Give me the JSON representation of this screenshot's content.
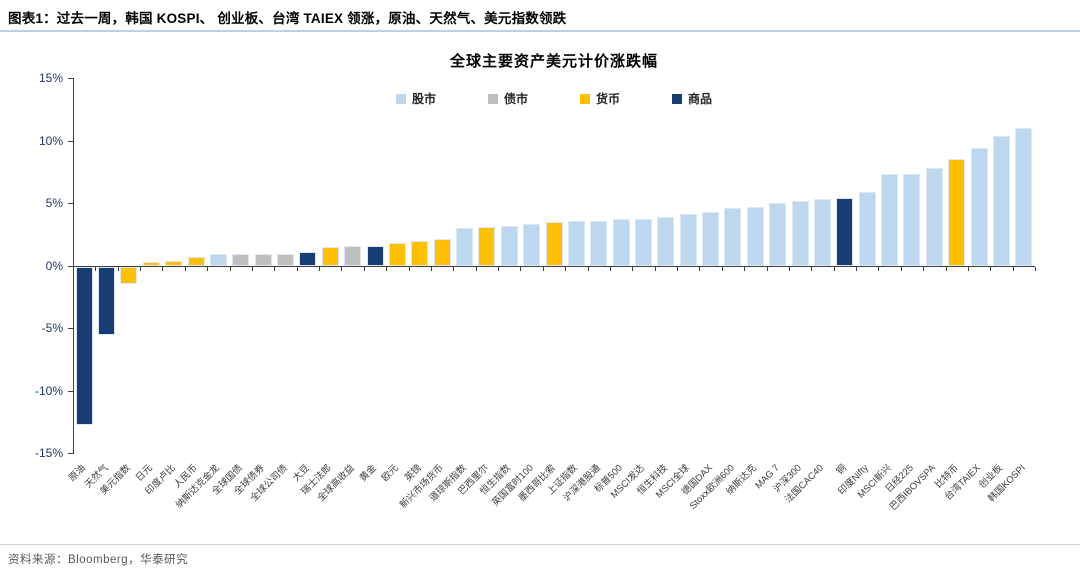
{
  "header": {
    "title": "图表1：过去一周，韩国 KOSPI、 创业板、台湾 TAIEX 领涨，原油、天然气、美元指数领跌"
  },
  "source": {
    "label": "资料来源：Bloomberg，华泰研究"
  },
  "colors": {
    "stock": "#BDD7EE",
    "bond": "#BFBFBF",
    "currency": "#FFC000",
    "commodity": "#163C74"
  },
  "chart_data": {
    "type": "bar",
    "title": "全球主要资产美元计价涨跌幅",
    "xlabel": "",
    "ylabel": "",
    "ylim": [
      -15,
      15
    ],
    "ytick_labels": [
      "15%",
      "10%",
      "5%",
      "0%",
      "-5%",
      "-10%",
      "-15%"
    ],
    "grid": false,
    "legend_position": "top-center",
    "legend": [
      {
        "label": "股市",
        "group": "stock",
        "color": "#BDD7EE"
      },
      {
        "label": "债市",
        "group": "bond",
        "color": "#BFBFBF"
      },
      {
        "label": "货币",
        "group": "currency",
        "color": "#FFC000"
      },
      {
        "label": "商品",
        "group": "commodity",
        "color": "#163C74"
      }
    ],
    "bars": [
      {
        "label": "原油",
        "group": "commodity",
        "value": -12.7
      },
      {
        "label": "天然气",
        "group": "commodity",
        "value": -5.5
      },
      {
        "label": "美元指数",
        "group": "currency",
        "value": -1.4
      },
      {
        "label": "日元",
        "group": "currency",
        "value": 0.3
      },
      {
        "label": "印度卢比",
        "group": "currency",
        "value": 0.4
      },
      {
        "label": "人民币",
        "group": "currency",
        "value": 0.7
      },
      {
        "label": "纳斯达克金龙",
        "group": "stock",
        "value": 0.9
      },
      {
        "label": "全球国债",
        "group": "bond",
        "value": 0.9
      },
      {
        "label": "全球债券",
        "group": "bond",
        "value": 0.9
      },
      {
        "label": "全球公司债",
        "group": "bond",
        "value": 0.9
      },
      {
        "label": "大豆",
        "group": "commodity",
        "value": 1.1
      },
      {
        "label": "瑞士法郎",
        "group": "currency",
        "value": 1.5
      },
      {
        "label": "全球高收益",
        "group": "bond",
        "value": 1.6
      },
      {
        "label": "黄金",
        "group": "commodity",
        "value": 1.6
      },
      {
        "label": "欧元",
        "group": "currency",
        "value": 1.8
      },
      {
        "label": "英镑",
        "group": "currency",
        "value": 2.0
      },
      {
        "label": "新兴市场货币",
        "group": "currency",
        "value": 2.1
      },
      {
        "label": "道琼斯指数",
        "group": "stock",
        "value": 3.0
      },
      {
        "label": "巴西里尔",
        "group": "currency",
        "value": 3.1
      },
      {
        "label": "恒生指数",
        "group": "stock",
        "value": 3.2
      },
      {
        "label": "英国富时100",
        "group": "stock",
        "value": 3.3
      },
      {
        "label": "墨西哥比索",
        "group": "currency",
        "value": 3.5
      },
      {
        "label": "上证指数",
        "group": "stock",
        "value": 3.6
      },
      {
        "label": "沪深港股通",
        "group": "stock",
        "value": 3.6
      },
      {
        "label": "标普500",
        "group": "stock",
        "value": 3.7
      },
      {
        "label": "MSCI发达",
        "group": "stock",
        "value": 3.7
      },
      {
        "label": "恒生科技",
        "group": "stock",
        "value": 3.9
      },
      {
        "label": "MSCI全球",
        "group": "stock",
        "value": 4.1
      },
      {
        "label": "德国DAX",
        "group": "stock",
        "value": 4.3
      },
      {
        "label": "Stoxx欧洲600",
        "group": "stock",
        "value": 4.6
      },
      {
        "label": "纳斯达克",
        "group": "stock",
        "value": 4.7
      },
      {
        "label": "MAG 7",
        "group": "stock",
        "value": 5.0
      },
      {
        "label": "沪深300",
        "group": "stock",
        "value": 5.2
      },
      {
        "label": "法国CAC40",
        "group": "stock",
        "value": 5.3
      },
      {
        "label": "铜",
        "group": "commodity",
        "value": 5.4
      },
      {
        "label": "印度Nifty",
        "group": "stock",
        "value": 5.9
      },
      {
        "label": "MSCI新兴",
        "group": "stock",
        "value": 7.3
      },
      {
        "label": "日经225",
        "group": "stock",
        "value": 7.3
      },
      {
        "label": "巴西IBOVSPA",
        "group": "stock",
        "value": 7.8
      },
      {
        "label": "比特币",
        "group": "currency",
        "value": 8.5
      },
      {
        "label": "台湾TAIEX",
        "group": "stock",
        "value": 9.4
      },
      {
        "label": "创业板",
        "group": "stock",
        "value": 10.4
      },
      {
        "label": "韩国KOSPI",
        "group": "stock",
        "value": 11.0
      }
    ]
  }
}
